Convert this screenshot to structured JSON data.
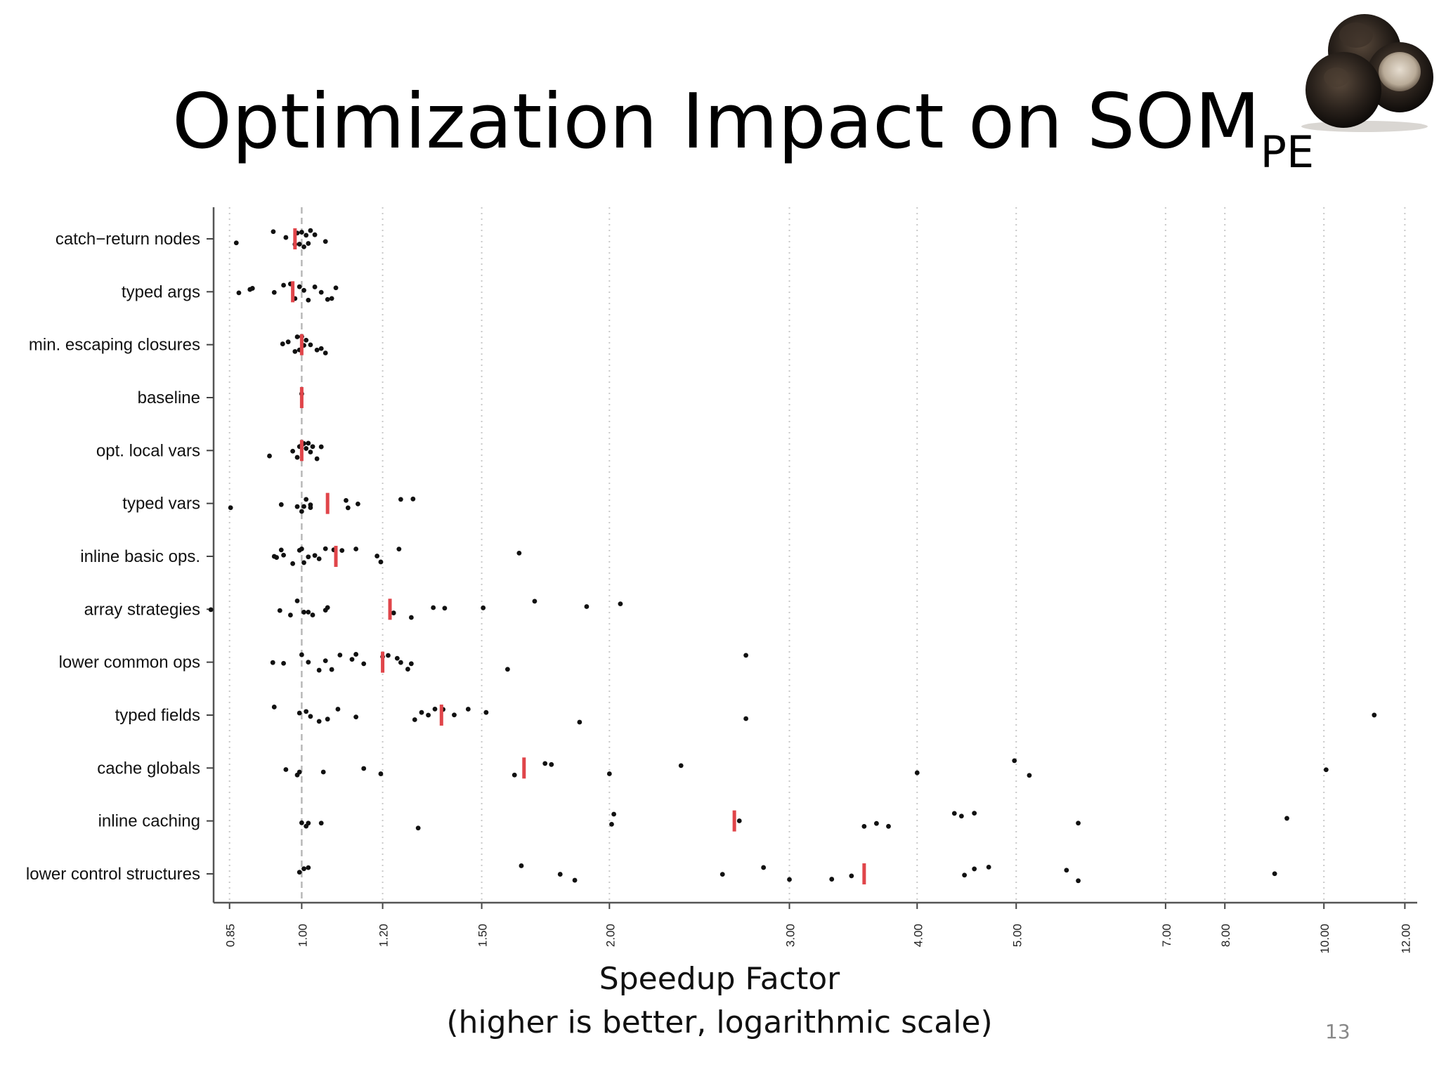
{
  "slide": {
    "title_main": "Optimization Impact on SOM",
    "title_sub": "PE",
    "page_number": "13"
  },
  "chart_data": {
    "type": "scatter",
    "orientation": "horizontal",
    "x_scale": "log",
    "xlim": [
      0.82,
      12.3
    ],
    "xlabel": "Speedup Factor",
    "xlabel_sub": "(higher is better, logarithmic scale)",
    "ylabel": "",
    "grid": "vertical dotted",
    "reference_line": 1.0,
    "ticks": [
      "0.85",
      "1.00",
      "1.20",
      "1.50",
      "2.00",
      "3.00",
      "4.00",
      "5.00",
      "7.00",
      "8.00",
      "10.00",
      "12.00"
    ],
    "point_color": "#111111",
    "mean_marker_color": "#e0454a",
    "series": [
      {
        "name": "catch−return nodes",
        "mean": 0.985,
        "points": [
          0.863,
          0.938,
          0.965,
          0.985,
          0.99,
          0.995,
          1.0,
          1.005,
          1.01,
          1.015,
          1.02,
          1.03,
          1.055
        ]
      },
      {
        "name": "typed args",
        "mean": 0.98,
        "points": [
          0.868,
          0.89,
          0.895,
          0.94,
          0.96,
          0.975,
          0.985,
          0.995,
          1.005,
          1.015,
          1.03,
          1.045,
          1.06,
          1.07,
          1.08
        ]
      },
      {
        "name": "min. escaping closures",
        "mean": 1.0,
        "points": [
          0.958,
          0.97,
          0.985,
          0.99,
          0.995,
          1.0,
          1.005,
          1.01,
          1.02,
          1.035,
          1.045,
          1.055
        ]
      },
      {
        "name": "baseline",
        "mean": 1.0,
        "points": [
          1.0
        ]
      },
      {
        "name": "opt. local vars",
        "mean": 1.0,
        "points": [
          0.93,
          0.98,
          0.99,
          0.995,
          1.0,
          1.005,
          1.01,
          1.015,
          1.02,
          1.025,
          1.035,
          1.045
        ]
      },
      {
        "name": "typed vars",
        "mean": 1.06,
        "points": [
          0.852,
          0.955,
          0.99,
          1.0,
          1.005,
          1.01,
          1.02,
          1.02,
          1.105,
          1.11,
          1.135,
          1.25,
          1.285
        ]
      },
      {
        "name": "inline basic ops.",
        "mean": 1.08,
        "points": [
          0.94,
          0.945,
          0.955,
          0.96,
          0.98,
          0.995,
          1.0,
          1.005,
          1.015,
          1.03,
          1.04,
          1.055,
          1.075,
          1.095,
          1.13,
          1.185,
          1.195,
          1.245,
          1.632
        ]
      },
      {
        "name": "array strategies",
        "mean": 1.22,
        "points": [
          0.815,
          0.952,
          0.975,
          0.99,
          1.005,
          1.015,
          1.025,
          1.055,
          1.06,
          1.23,
          1.28,
          1.345,
          1.38,
          1.505,
          1.69,
          1.9,
          2.05
        ]
      },
      {
        "name": "lower common ops",
        "mean": 1.2,
        "points": [
          0.937,
          0.96,
          1.0,
          1.015,
          1.04,
          1.055,
          1.07,
          1.09,
          1.12,
          1.13,
          1.15,
          1.2,
          1.215,
          1.24,
          1.25,
          1.27,
          1.28,
          1.59,
          2.72
        ]
      },
      {
        "name": "typed fields",
        "mean": 1.37,
        "points": [
          0.94,
          0.995,
          1.01,
          1.02,
          1.04,
          1.06,
          1.085,
          1.13,
          1.29,
          1.31,
          1.33,
          1.35,
          1.375,
          1.41,
          1.455,
          1.515,
          1.87,
          2.72,
          11.2
        ]
      },
      {
        "name": "cache globals",
        "mean": 1.65,
        "points": [
          0.965,
          0.99,
          0.995,
          1.05,
          1.15,
          1.195,
          1.615,
          1.73,
          1.755,
          2.0,
          2.35,
          4.0,
          4.98,
          5.15,
          10.05
        ]
      },
      {
        "name": "inline caching",
        "mean": 2.65,
        "points": [
          1.0,
          1.01,
          1.015,
          1.045,
          1.3,
          2.01,
          2.02,
          2.68,
          3.55,
          3.65,
          3.75,
          4.35,
          4.42,
          4.55,
          5.75,
          9.2
        ]
      },
      {
        "name": "lower control structures",
        "mean": 3.55,
        "points": [
          0.995,
          1.005,
          1.015,
          1.64,
          1.79,
          1.85,
          2.58,
          2.83,
          3.0,
          3.3,
          3.45,
          4.45,
          4.55,
          4.7,
          5.6,
          5.75,
          8.95
        ]
      }
    ]
  }
}
